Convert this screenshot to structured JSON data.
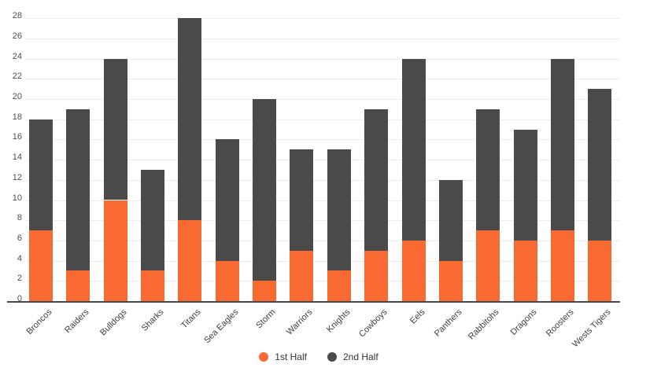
{
  "chart_data": {
    "type": "bar",
    "stacked": true,
    "title": "",
    "xlabel": "",
    "ylabel": "",
    "categories": [
      "Broncos",
      "Raiders",
      "Bulldogs",
      "Sharks",
      "Titans",
      "Sea Eagles",
      "Storm",
      "Warriors",
      "Knights",
      "Cowboys",
      "Eels",
      "Panthers",
      "Rabbitohs",
      "Dragons",
      "Roosters",
      "Wests Tigers"
    ],
    "series": [
      {
        "name": "1st Half",
        "color": "#F96A33",
        "values": [
          7,
          3,
          10,
          3,
          8,
          4,
          2,
          5,
          3,
          5,
          6,
          4,
          7,
          6,
          7,
          6
        ]
      },
      {
        "name": "2nd Half",
        "color": "#4A4A4A",
        "values": [
          11,
          16,
          14,
          10,
          20,
          12,
          18,
          10,
          12,
          14,
          18,
          8,
          12,
          11,
          17,
          15
        ]
      }
    ],
    "totals": [
      18,
      19,
      24,
      13,
      28,
      16,
      20,
      15,
      15,
      19,
      24,
      12,
      19,
      17,
      24,
      21
    ],
    "y_axis": {
      "min": 0,
      "max": 28,
      "step": 2,
      "ticks": [
        "0",
        "2",
        "4",
        "6",
        "8",
        "10",
        "12",
        "14",
        "16",
        "18",
        "20",
        "22",
        "24",
        "26",
        "28"
      ]
    },
    "grid": true,
    "grid_color": "#EDEDED",
    "axis_line_color": "#4A4A4A",
    "legend": {
      "position": "bottom",
      "items": [
        "1st Half",
        "2nd Half"
      ]
    }
  }
}
